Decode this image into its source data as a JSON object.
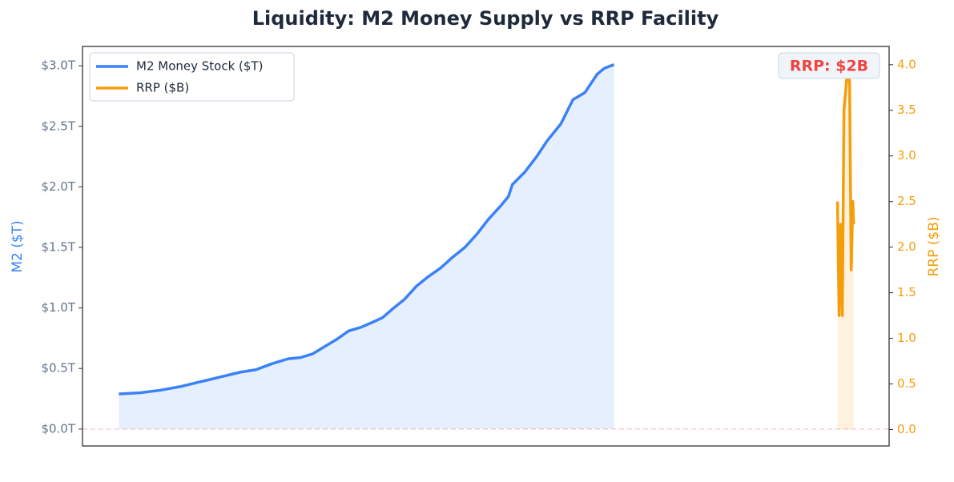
{
  "chart_data": {
    "type": "line",
    "title": "Liquidity: M2 Money Supply vs RRP Facility",
    "ylabel": "M2 ($T)",
    "y2label": "RRP ($B)",
    "annotation": "RRP: $2B",
    "xlim": [
      0,
      100
    ],
    "ylim": [
      -0.14,
      3.16
    ],
    "yticks": [
      {
        "value": 0,
        "label": "$0.0T"
      },
      {
        "value": 0.5,
        "label": "$0.5T"
      },
      {
        "value": 1.0,
        "label": "$1.0T"
      },
      {
        "value": 1.5,
        "label": "$1.5T"
      },
      {
        "value": 2.0,
        "label": "$2.0T"
      },
      {
        "value": 2.5,
        "label": "$2.5T"
      },
      {
        "value": 3.0,
        "label": "$3.0T"
      }
    ],
    "y2lim": [
      -0.18,
      4.2
    ],
    "y2ticks": [
      {
        "value": 0,
        "label": "0.0"
      },
      {
        "value": 0.5,
        "label": "0.5"
      },
      {
        "value": 1.0,
        "label": "1.0"
      },
      {
        "value": 1.5,
        "label": "1.5"
      },
      {
        "value": 2.0,
        "label": "2.0"
      },
      {
        "value": 2.5,
        "label": "2.5"
      },
      {
        "value": 3.0,
        "label": "3.0"
      },
      {
        "value": 3.5,
        "label": "3.5"
      },
      {
        "value": 4.0,
        "label": "4.0"
      }
    ],
    "hline": 0,
    "legend": "upper left",
    "series": [
      {
        "name": "M2 Money Stock ($T)",
        "color": "#3b82f6",
        "x": [
          4.5,
          7.2,
          9.6,
          12.1,
          14.6,
          17.1,
          19.6,
          21.5,
          23.5,
          25.5,
          27.0,
          28.5,
          30.0,
          31.5,
          33.0,
          34.5,
          35.9,
          37.2,
          38.4,
          39.9,
          41.4,
          42.9,
          44.4,
          45.9,
          47.4,
          48.9,
          50.3,
          51.8,
          52.8,
          53.3,
          54.8,
          56.3,
          57.6,
          59.3,
          60.8,
          62.3,
          63.8,
          64.7,
          65.9
        ],
        "values": [
          0.29,
          0.3,
          0.32,
          0.35,
          0.39,
          0.43,
          0.47,
          0.49,
          0.54,
          0.58,
          0.59,
          0.62,
          0.68,
          0.74,
          0.81,
          0.84,
          0.88,
          0.92,
          0.99,
          1.07,
          1.18,
          1.26,
          1.33,
          1.42,
          1.5,
          1.61,
          1.73,
          1.84,
          1.92,
          2.02,
          2.12,
          2.25,
          2.38,
          2.52,
          2.72,
          2.78,
          2.93,
          2.98,
          3.01
        ]
      },
      {
        "name": "RRP ($B)",
        "color": "#f59e0b",
        "axis": "y2",
        "x": [
          93.6,
          93.8,
          94.0,
          94.2,
          94.4,
          94.9,
          95.1,
          95.3,
          95.5,
          95.6
        ],
        "values": [
          2.5,
          1.25,
          2.25,
          1.25,
          3.5,
          4.0,
          3.8,
          1.75,
          2.5,
          2.25
        ]
      }
    ]
  }
}
